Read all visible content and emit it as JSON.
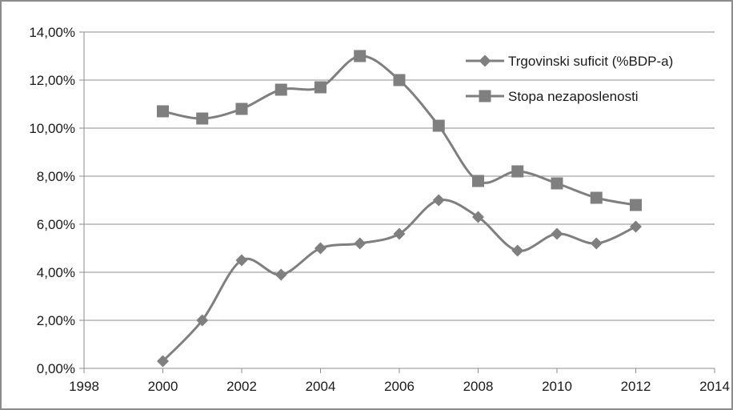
{
  "chart_data": {
    "type": "line",
    "title": "",
    "xlabel": "",
    "ylabel": "",
    "xlim": [
      1998,
      2014
    ],
    "ylim": [
      0,
      14
    ],
    "x_ticks": [
      {
        "value": 1998,
        "label": "1998"
      },
      {
        "value": 2000,
        "label": "2000"
      },
      {
        "value": 2002,
        "label": "2002"
      },
      {
        "value": 2004,
        "label": "2004"
      },
      {
        "value": 2006,
        "label": "2006"
      },
      {
        "value": 2008,
        "label": "2008"
      },
      {
        "value": 2010,
        "label": "2010"
      },
      {
        "value": 2012,
        "label": "2012"
      },
      {
        "value": 2014,
        "label": "2014"
      }
    ],
    "y_ticks": [
      {
        "value": 0,
        "label": "0,00%"
      },
      {
        "value": 2,
        "label": "2,00%"
      },
      {
        "value": 4,
        "label": "4,00%"
      },
      {
        "value": 6,
        "label": "6,00%"
      },
      {
        "value": 8,
        "label": "8,00%"
      },
      {
        "value": 10,
        "label": "10,00%"
      },
      {
        "value": 12,
        "label": "12,00%"
      },
      {
        "value": 14,
        "label": "14,00%"
      }
    ],
    "grid": "horizontal",
    "legend_position": "top-right",
    "series_color": "#7f7f7f",
    "series": [
      {
        "name": "Trgovinski suficit (%BDP-a)",
        "marker": "diamond",
        "smooth": true,
        "x": [
          2000,
          2001,
          2002,
          2003,
          2004,
          2005,
          2006,
          2007,
          2008,
          2009,
          2010,
          2011,
          2012
        ],
        "y": [
          0.3,
          2.0,
          4.5,
          3.9,
          5.0,
          5.2,
          5.6,
          7.0,
          6.3,
          4.9,
          5.6,
          5.2,
          5.9
        ]
      },
      {
        "name": "Stopa nezaposlenosti",
        "marker": "square",
        "smooth": true,
        "x": [
          2000,
          2001,
          2002,
          2003,
          2004,
          2005,
          2006,
          2007,
          2008,
          2009,
          2010,
          2011,
          2012
        ],
        "y": [
          10.7,
          10.4,
          10.8,
          11.6,
          11.7,
          13.0,
          12.0,
          10.1,
          7.8,
          8.2,
          7.7,
          7.1,
          6.8
        ]
      }
    ]
  }
}
